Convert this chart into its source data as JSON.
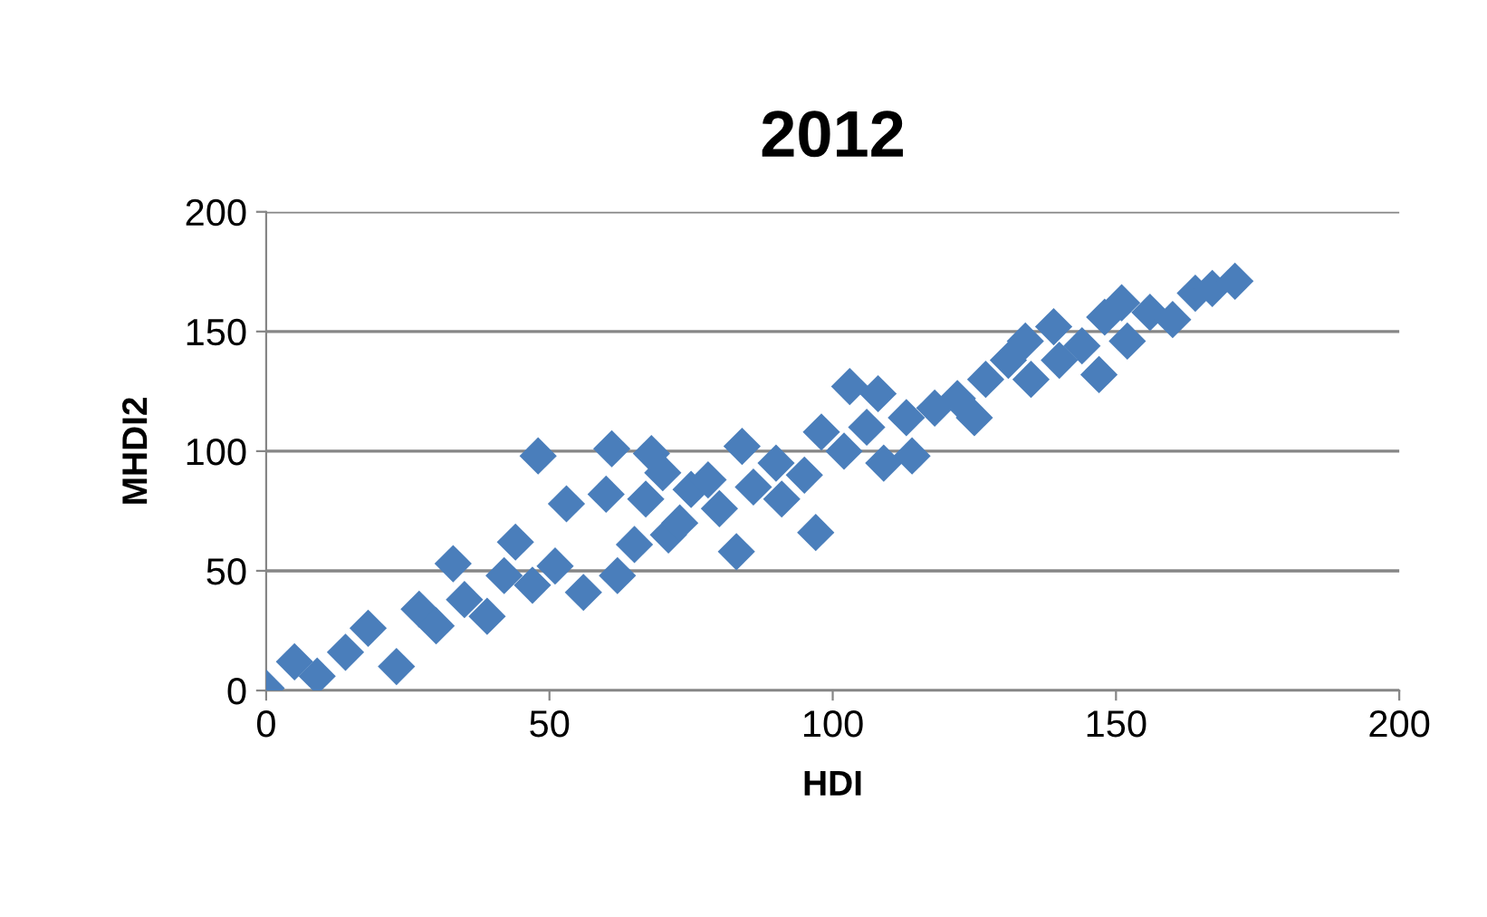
{
  "chart_data": {
    "type": "scatter",
    "title": "2012",
    "xlabel": "HDI",
    "ylabel": "MHDI2",
    "xlim": [
      0,
      200
    ],
    "xticks": [
      0,
      50,
      100,
      150,
      200
    ],
    "ylim": [
      0,
      200
    ],
    "yticks": [
      0,
      50,
      100,
      150,
      200
    ],
    "grid": "y",
    "marker": "diamond",
    "legend": false,
    "series": [
      {
        "color": "#4a7ebb",
        "x": [
          0,
          5,
          9,
          14,
          18,
          23,
          27,
          30,
          33,
          35,
          39,
          42,
          44,
          47,
          48,
          51,
          53,
          56,
          60,
          61,
          62,
          65,
          67,
          68,
          70,
          71,
          73,
          75,
          78,
          80,
          83,
          84,
          86,
          90,
          91,
          95,
          97,
          98,
          102,
          103,
          106,
          108,
          109,
          113,
          114,
          118,
          122,
          125,
          127,
          131,
          134,
          135,
          139,
          140,
          144,
          147,
          148,
          151,
          152,
          156,
          160,
          164,
          167,
          171
        ],
        "values": [
          1,
          12,
          6,
          16,
          26,
          10,
          34,
          27,
          53,
          38,
          31,
          48,
          62,
          44,
          98,
          52,
          78,
          41,
          82,
          101,
          48,
          61,
          80,
          99,
          91,
          65,
          70,
          84,
          88,
          76,
          58,
          102,
          85,
          95,
          80,
          90,
          66,
          108,
          100,
          127,
          110,
          124,
          95,
          114,
          98,
          118,
          122,
          114,
          130,
          138,
          146,
          130,
          152,
          138,
          144,
          132,
          156,
          162,
          146,
          158,
          155,
          166,
          168,
          171
        ]
      }
    ]
  }
}
